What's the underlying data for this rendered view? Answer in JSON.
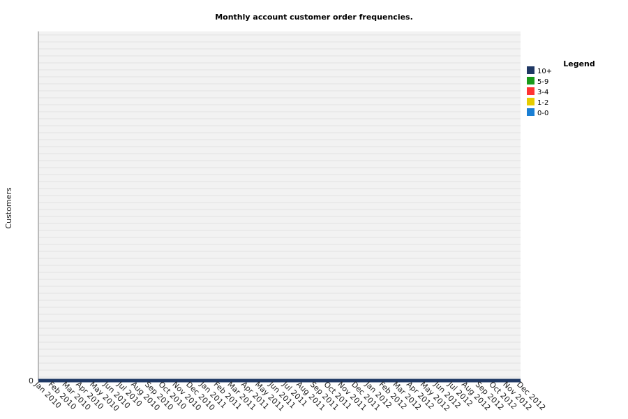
{
  "chart_data": {
    "type": "area",
    "title": "Monthly account customer order frequencies.",
    "xlabel": "",
    "ylabel": "Customers",
    "categories": [
      "Jan 2010",
      "Feb 2010",
      "Mar 2010",
      "Apr 2010",
      "May 2010",
      "Jun 2010",
      "Jul 2010",
      "Aug 2010",
      "Sep 2010",
      "Oct 2010",
      "Nov 2010",
      "Dec 2010",
      "Jan 2011",
      "Feb 2011",
      "Mar 2011",
      "Apr 2011",
      "May 2011",
      "Jun 2011",
      "Jul 2011",
      "Aug 2011",
      "Sep 2011",
      "Oct 2011",
      "Nov 2011",
      "Dec 2011",
      "Jan 2012",
      "Feb 2012",
      "Mar 2012",
      "Apr 2012",
      "May 2012",
      "Jun 2012",
      "Jul 2012",
      "Aug 2012",
      "Sep 2012",
      "Oct 2012",
      "Nov 2012",
      "Dec 2012"
    ],
    "y_ticks": [
      "0"
    ],
    "stacked": true,
    "grid": true,
    "legend": {
      "title": "Legend",
      "placement": "right"
    },
    "series": [
      {
        "name": "10+",
        "color": "#1f3864",
        "values": [
          0,
          0,
          0,
          0,
          0,
          0,
          0,
          0,
          0,
          0,
          0,
          0,
          0,
          0,
          0,
          0,
          0,
          0,
          0,
          0,
          0,
          0,
          0,
          0,
          0,
          0,
          0,
          0,
          0,
          0,
          0,
          0,
          0,
          0,
          0,
          0
        ]
      },
      {
        "name": "5-9",
        "color": "#1a9a1a",
        "values": [
          0,
          0,
          0,
          0,
          0,
          0,
          0,
          0,
          0,
          0,
          0,
          0,
          0,
          0,
          0,
          0,
          0,
          0,
          0,
          0,
          0,
          0,
          0,
          0,
          0,
          0,
          0,
          0,
          0,
          0,
          0,
          0,
          0,
          0,
          0,
          0
        ]
      },
      {
        "name": "3-4",
        "color": "#ff3333",
        "values": [
          0,
          0,
          0,
          0,
          0,
          0,
          0,
          0,
          0,
          0,
          0,
          0,
          0,
          0,
          0,
          0,
          0,
          0,
          0,
          0,
          0,
          0,
          0,
          0,
          0,
          0,
          0,
          0,
          0,
          0,
          0,
          0,
          0,
          0,
          0,
          0
        ]
      },
      {
        "name": "1-2",
        "color": "#e6cc00",
        "values": [
          0,
          0,
          0,
          0,
          0,
          0,
          0,
          0,
          0,
          0,
          0,
          0,
          0,
          0,
          0,
          0,
          0,
          0,
          0,
          0,
          0,
          0,
          0,
          0,
          0,
          0,
          0,
          0,
          0,
          0,
          0,
          0,
          0,
          0,
          0,
          0
        ]
      },
      {
        "name": "0-0",
        "color": "#1a7fd4",
        "values": [
          0,
          0,
          0,
          0,
          0,
          0,
          0,
          0,
          0,
          0,
          0,
          0,
          0,
          0,
          0,
          0,
          0,
          0,
          0,
          0,
          0,
          0,
          0,
          0,
          0,
          0,
          0,
          0,
          0,
          0,
          0,
          0,
          0,
          0,
          0,
          0
        ]
      }
    ]
  }
}
